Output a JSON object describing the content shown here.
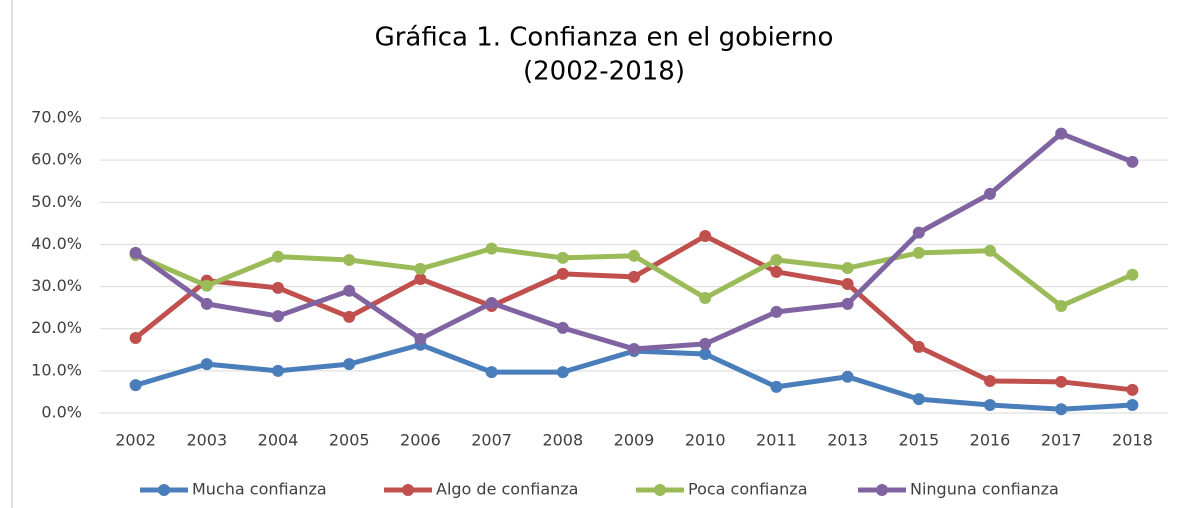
{
  "chart_data": {
    "type": "line",
    "title": "Gráfica 1. Confianza en el gobierno",
    "subtitle": "(2002-2018)",
    "categories": [
      "2002",
      "2003",
      "2004",
      "2005",
      "2006",
      "2007",
      "2008",
      "2009",
      "2010",
      "2011",
      "2013",
      "2015",
      "2016",
      "2017",
      "2018"
    ],
    "series": [
      {
        "name": "Mucha confianza",
        "color": "#4a7ebb",
        "values": [
          6.6,
          11.6,
          10.0,
          11.6,
          16.2,
          9.7,
          9.7,
          14.7,
          14.0,
          6.2,
          8.6,
          3.3,
          1.9,
          0.9,
          1.9
        ]
      },
      {
        "name": "Algo de confianza",
        "color": "#c0504d",
        "values": [
          17.8,
          31.4,
          29.7,
          22.8,
          31.8,
          25.4,
          33.0,
          32.3,
          42.0,
          33.5,
          30.6,
          15.7,
          7.6,
          7.4,
          5.5
        ]
      },
      {
        "name": "Poca confianza",
        "color": "#9bbb59",
        "values": [
          37.5,
          30.2,
          37.1,
          36.3,
          34.2,
          39.0,
          36.8,
          37.3,
          27.3,
          36.3,
          34.4,
          38.0,
          38.5,
          25.4,
          32.8
        ]
      },
      {
        "name": "Ninguna confianza",
        "color": "#8064a2",
        "values": [
          38.0,
          25.9,
          23.0,
          29.0,
          17.6,
          26.1,
          20.2,
          15.2,
          16.4,
          24.0,
          25.9,
          42.8,
          52.0,
          66.3,
          59.6
        ]
      }
    ],
    "ylim": [
      0,
      70
    ],
    "yticks": [
      {
        "value": 0,
        "label": "0.0%"
      },
      {
        "value": 10,
        "label": "10.0%"
      },
      {
        "value": 20,
        "label": "20.0%"
      },
      {
        "value": 30,
        "label": "30.0%"
      },
      {
        "value": 40,
        "label": "40.0%"
      },
      {
        "value": 50,
        "label": "50.0%"
      },
      {
        "value": 60,
        "label": "60.0%"
      },
      {
        "value": 70,
        "label": "70.0%"
      }
    ],
    "grid": true,
    "legend": "bottom"
  }
}
